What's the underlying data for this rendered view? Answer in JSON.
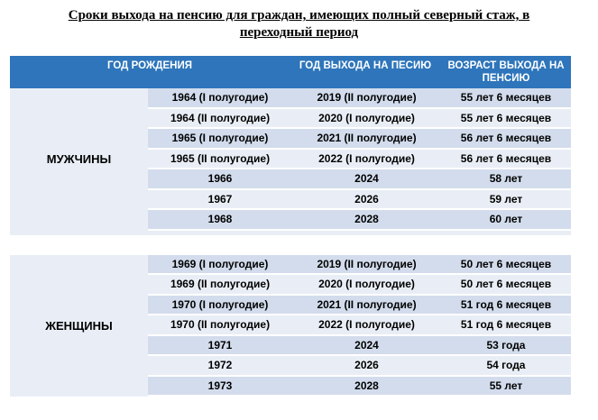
{
  "title": {
    "line1": "Сроки выхода на пенсию для граждан, имеющих полный северный стаж, в",
    "line2": "переходный период"
  },
  "table": {
    "headers": {
      "birth_year": "ГОД РОЖДЕНИЯ",
      "retire_year": "ГОД ВЫХОДА НА ПЕСИЮ",
      "retire_age": "ВОЗРАСТ ВЫХОДА НА ПЕНСИЮ"
    },
    "men": {
      "label": "МУЖЧИНЫ",
      "rows": [
        {
          "birth": "1964 (I полугодие)",
          "year": "2019 (II полугодие)",
          "age": "55 лет 6 месяцев"
        },
        {
          "birth": "1964 (II полугодие)",
          "year": "2020 (I полугодие)",
          "age": "55 лет 6 месяцев"
        },
        {
          "birth": "1965 (I полугодие)",
          "year": "2021 (II полугодие)",
          "age": "56 лет 6 месяцев"
        },
        {
          "birth": "1965 (II полугодие)",
          "year": "2022 (I полугодие)",
          "age": "56 лет 6 месяцев"
        },
        {
          "birth": "1966",
          "year": "2024",
          "age": "58 лет"
        },
        {
          "birth": "1967",
          "year": "2026",
          "age": "59 лет"
        },
        {
          "birth": "1968",
          "year": "2028",
          "age": "60 лет"
        }
      ]
    },
    "women": {
      "label": "ЖЕНЩИНЫ",
      "rows": [
        {
          "birth": "1969 (I полугодие)",
          "year": "2019 (II полугодие)",
          "age": "50 лет 6 месяцев"
        },
        {
          "birth": "1969 (II полугодие)",
          "year": "2020 (I полугодие)",
          "age": "50 лет 6 месяцев"
        },
        {
          "birth": "1970 (I полугодие)",
          "year": "2021 (II полугодие)",
          "age": "51 год 6 месяцев"
        },
        {
          "birth": "1970 (II полугодие)",
          "year": "2022 (I полугодие)",
          "age": "51 год 6 месяцев"
        },
        {
          "birth": "1971",
          "year": "2024",
          "age": "53 года"
        },
        {
          "birth": "1972",
          "year": "2026",
          "age": "54 года"
        },
        {
          "birth": "1973",
          "year": "2028",
          "age": "55 лет"
        }
      ]
    }
  },
  "colors": {
    "header_bg": "#2e75bb",
    "row_light": "#e9eef6",
    "row_dark": "#d2dcec"
  }
}
